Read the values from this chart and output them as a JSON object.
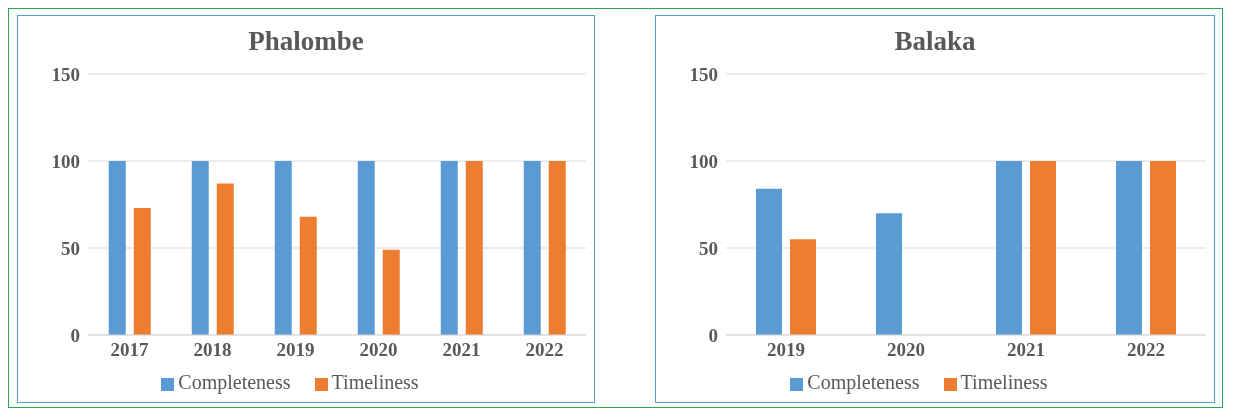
{
  "chart_data": [
    {
      "type": "bar",
      "title": "Phalombe",
      "categories": [
        "2017",
        "2018",
        "2019",
        "2020",
        "2021",
        "2022"
      ],
      "series": [
        {
          "name": "Completeness",
          "color": "#5b9bd5",
          "values": [
            100,
            100,
            100,
            100,
            100,
            100
          ]
        },
        {
          "name": "Timeliness",
          "color": "#ed7d31",
          "values": [
            73,
            87,
            68,
            49,
            100,
            100
          ]
        }
      ],
      "ylim": [
        0,
        150
      ],
      "yticks": [
        0,
        50,
        100,
        150
      ],
      "grid": "y",
      "legend": "bottom"
    },
    {
      "type": "bar",
      "title": "Balaka",
      "categories": [
        "2019",
        "2020",
        "2021",
        "2022"
      ],
      "series": [
        {
          "name": "Completeness",
          "color": "#5b9bd5",
          "values": [
            84,
            70,
            100,
            100
          ]
        },
        {
          "name": "Timeliness",
          "color": "#ed7d31",
          "values": [
            55,
            null,
            100,
            100
          ]
        }
      ],
      "ylim": [
        0,
        150
      ],
      "yticks": [
        0,
        50,
        100,
        150
      ],
      "grid": "y",
      "legend": "bottom"
    }
  ]
}
